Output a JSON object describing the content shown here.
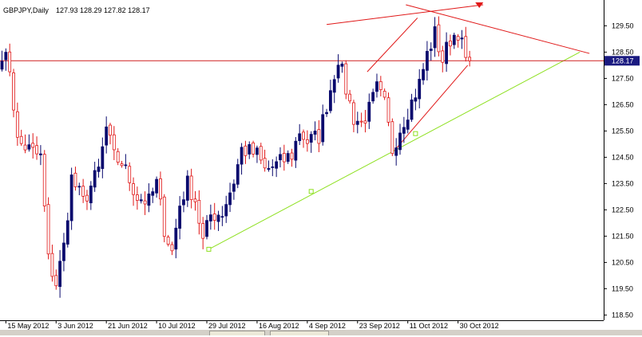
{
  "header": {
    "symbol_label": "GBPJPY,Daily",
    "ohlc_label": "127.93 128.29 127.82 128.17"
  },
  "colors": {
    "bull": "#0a0a6e",
    "bear": "#e01818",
    "trend_lines": "#e01818",
    "support_line": "#8ee020",
    "price_line": "#d02020",
    "price_tag_bg": "#1a1a80"
  },
  "icons": {
    "marker": "red-down-triangle-marker-icon"
  },
  "chart_data": {
    "type": "candlestick",
    "title": "GBPJPY,Daily",
    "current_price": 128.17,
    "current_price_label": "128.17",
    "ylim": [
      118.3,
      130.3
    ],
    "y_ticks": [
      "129.50",
      "128.50",
      "127.50",
      "126.50",
      "125.50",
      "124.50",
      "123.50",
      "122.50",
      "121.50",
      "120.50",
      "119.50",
      "118.50"
    ],
    "y_tick_values": [
      129.5,
      128.5,
      127.5,
      126.5,
      125.5,
      124.5,
      123.5,
      122.5,
      121.5,
      120.5,
      119.5,
      118.5
    ],
    "x_ticks": [
      "15 May 2012",
      "3 Jun 2012",
      "21 Jun 2012",
      "10 Jul 2012",
      "29 Jul 2012",
      "16 Aug 2012",
      "4 Sep 2012",
      "23 Sep 2012",
      "11 Oct 2012",
      "30 Oct 2012"
    ],
    "x_tick_index": [
      1,
      14,
      27,
      40,
      53,
      66,
      79,
      92,
      105,
      118
    ],
    "grid": false,
    "anchors": [
      {
        "i": 0,
        "p": 128.5
      },
      {
        "i": 2,
        "p": 127.9
      },
      {
        "i": 4,
        "p": 125.1
      },
      {
        "i": 6,
        "p": 124.9
      },
      {
        "i": 10,
        "p": 124.5
      },
      {
        "i": 12,
        "p": 120.6
      },
      {
        "i": 14,
        "p": 119.7
      },
      {
        "i": 16,
        "p": 121.1
      },
      {
        "i": 18,
        "p": 123.7
      },
      {
        "i": 21,
        "p": 122.8
      },
      {
        "i": 25,
        "p": 124.0
      },
      {
        "i": 27,
        "p": 125.6
      },
      {
        "i": 29,
        "p": 124.5
      },
      {
        "i": 31,
        "p": 124.3
      },
      {
        "i": 35,
        "p": 123.0
      },
      {
        "i": 38,
        "p": 122.8
      },
      {
        "i": 40,
        "p": 123.5
      },
      {
        "i": 42,
        "p": 121.8
      },
      {
        "i": 44,
        "p": 120.9
      },
      {
        "i": 46,
        "p": 122.7
      },
      {
        "i": 48,
        "p": 123.5
      },
      {
        "i": 50,
        "p": 122.9
      },
      {
        "i": 52,
        "p": 121.3
      },
      {
        "i": 54,
        "p": 122.3
      },
      {
        "i": 57,
        "p": 122.4
      },
      {
        "i": 60,
        "p": 123.6
      },
      {
        "i": 62,
        "p": 124.8
      },
      {
        "i": 66,
        "p": 124.6
      },
      {
        "i": 68,
        "p": 124.0
      },
      {
        "i": 71,
        "p": 124.2
      },
      {
        "i": 75,
        "p": 124.6
      },
      {
        "i": 77,
        "p": 125.5
      },
      {
        "i": 79,
        "p": 125.1
      },
      {
        "i": 82,
        "p": 125.3
      },
      {
        "i": 85,
        "p": 127.1
      },
      {
        "i": 87,
        "p": 128.3
      },
      {
        "i": 89,
        "p": 127.1
      },
      {
        "i": 91,
        "p": 126.0
      },
      {
        "i": 93,
        "p": 125.8
      },
      {
        "i": 95,
        "p": 126.3
      },
      {
        "i": 97,
        "p": 127.1
      },
      {
        "i": 99,
        "p": 126.5
      },
      {
        "i": 101,
        "p": 124.8
      },
      {
        "i": 103,
        "p": 125.6
      },
      {
        "i": 106,
        "p": 126.6
      },
      {
        "i": 108,
        "p": 127.3
      },
      {
        "i": 110,
        "p": 128.4
      },
      {
        "i": 112,
        "p": 129.2
      },
      {
        "i": 114,
        "p": 128.2
      },
      {
        "i": 116,
        "p": 129.0
      },
      {
        "i": 118,
        "p": 129.3
      },
      {
        "i": 120,
        "p": 128.2
      },
      {
        "i": 121,
        "p": 128.17
      }
    ]
  },
  "drawings": {
    "channel_upper": {
      "from": [
        84.0,
        129.55
      ],
      "to": [
        124.5,
        130.3
      ]
    },
    "resistance_line": {
      "from": [
        104.5,
        130.3
      ],
      "to": [
        152.0,
        128.45
      ]
    },
    "channel_left": {
      "from": [
        94.5,
        127.75
      ],
      "to": [
        107.5,
        129.8
      ]
    },
    "channel_lower": {
      "from": [
        101.5,
        124.75
      ],
      "to": [
        120.5,
        128.0
      ]
    },
    "support_line": {
      "from": [
        53.5,
        121.0
      ],
      "to": [
        149.5,
        128.5
      ],
      "markers": [
        [
          53.5,
          121.0
        ],
        [
          80.0,
          123.2
        ],
        [
          107.0,
          125.4
        ]
      ]
    }
  },
  "tabs": []
}
